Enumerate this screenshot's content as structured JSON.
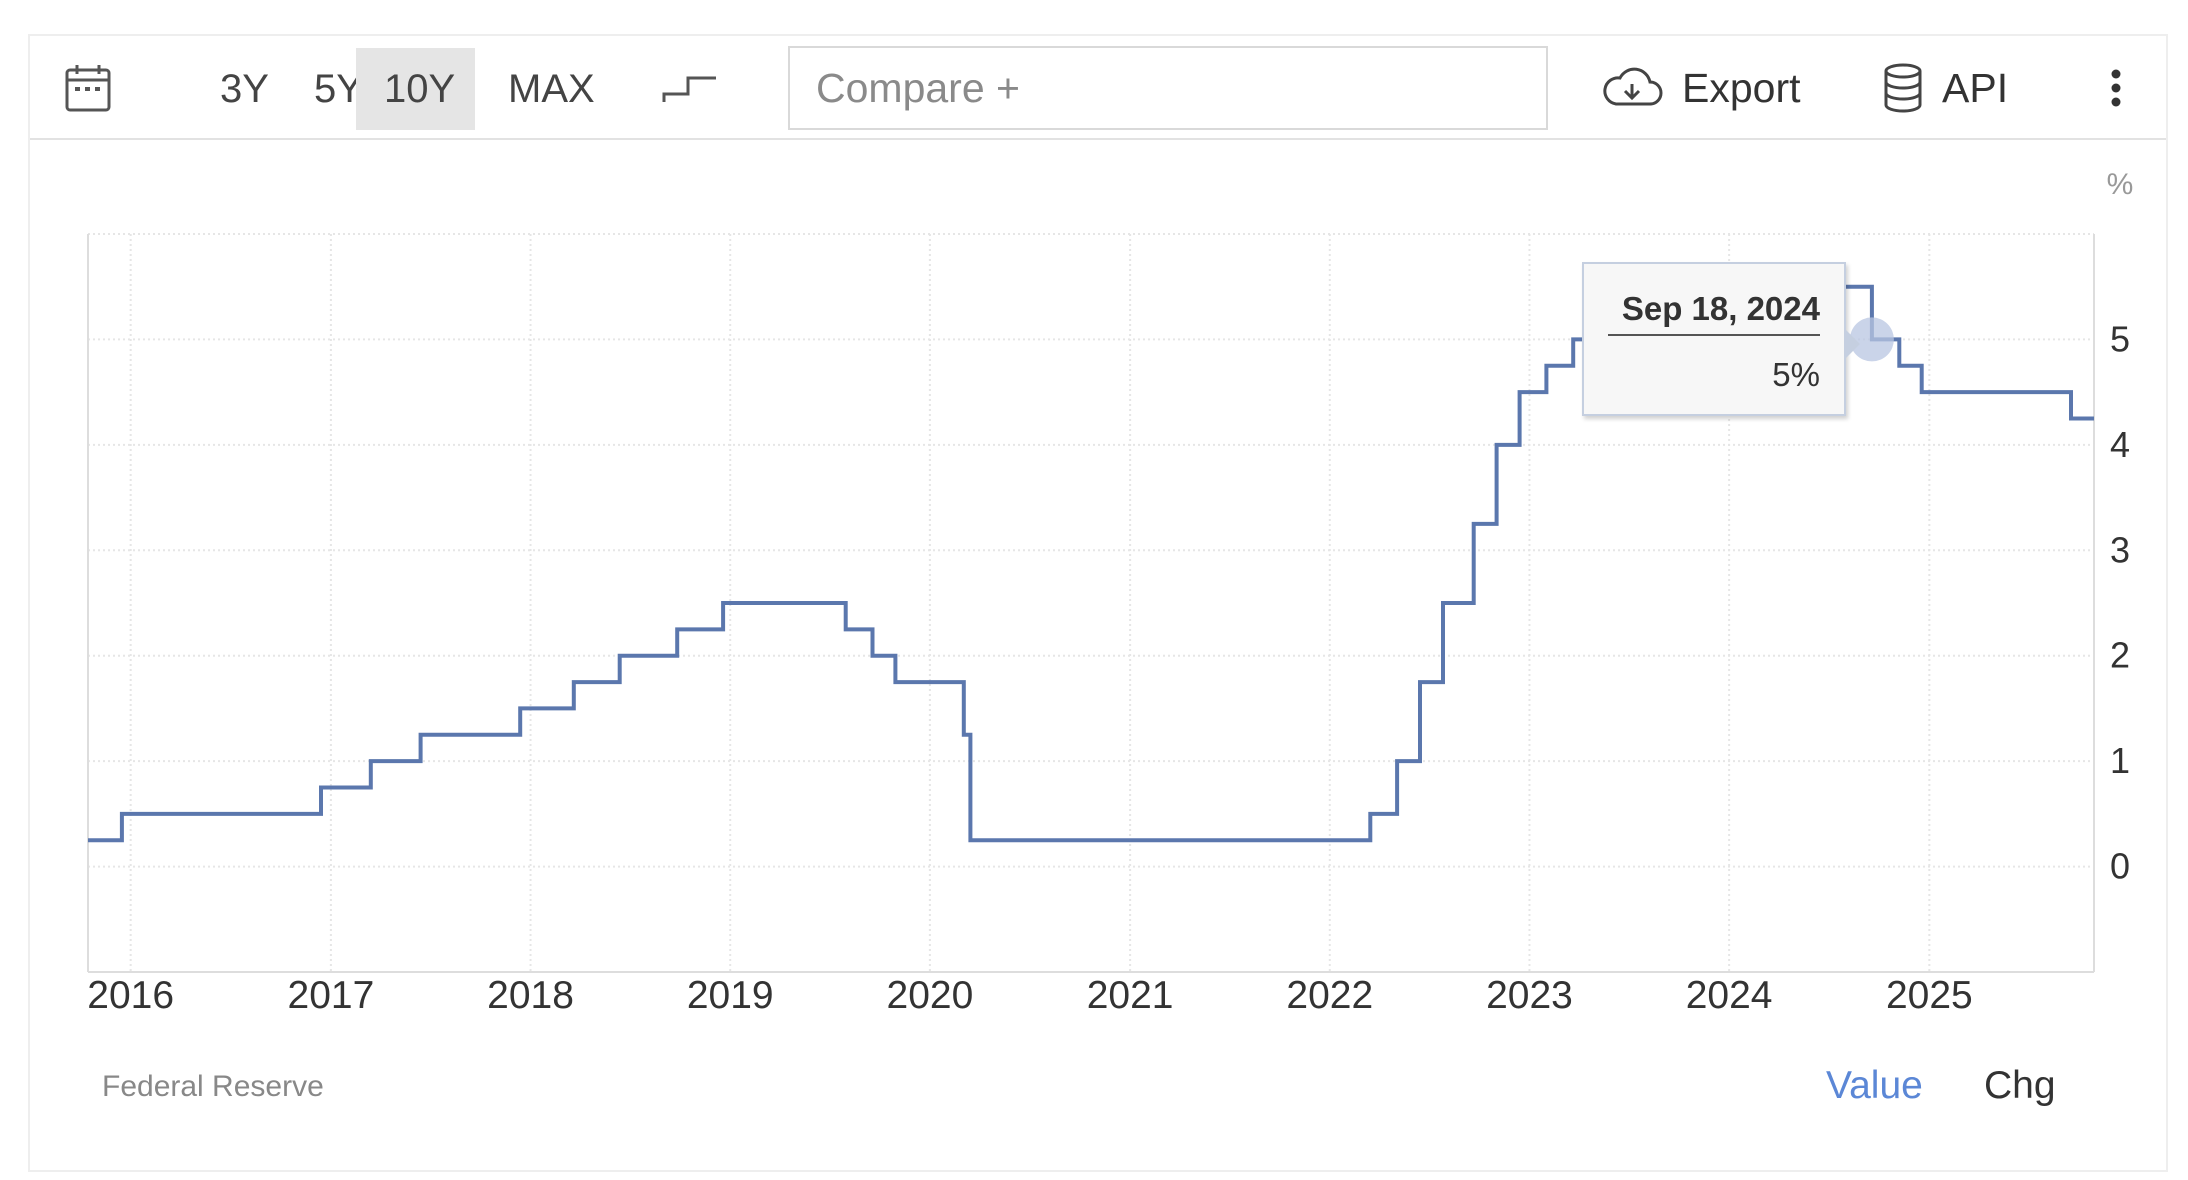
{
  "toolbar": {
    "ranges": [
      "3Y",
      "5Y",
      "10Y",
      "MAX"
    ],
    "active_range": "10Y",
    "compare_placeholder": "Compare +",
    "export_label": "Export",
    "api_label": "API",
    "icons": [
      "calendar-icon",
      "stepline-icon",
      "cloud-download-icon",
      "database-icon",
      "more-vertical-icon"
    ]
  },
  "tooltip": {
    "date": "Sep 18, 2024",
    "value": "5%"
  },
  "footer": {
    "source": "Federal Reserve",
    "value_label": "Value",
    "chg_label": "Chg"
  },
  "colors": {
    "line": "#5b77ad",
    "grid": "#e6e6e6",
    "accent_link": "#5b87d6",
    "tooltip_border": "#c5cfe0"
  },
  "chart_data": {
    "type": "line",
    "step": true,
    "unit_label": "%",
    "grid": true,
    "x_ticks": [
      "2016",
      "2017",
      "2018",
      "2019",
      "2020",
      "2021",
      "2022",
      "2023",
      "2024",
      "2025"
    ],
    "y_ticks": [
      "0",
      "1",
      "2",
      "3",
      "4",
      "5"
    ],
    "ylim": [
      -1,
      6
    ],
    "xlim": [
      "2015-10-15",
      "2025-10-29"
    ],
    "highlight": {
      "date": "2024-09-18",
      "value": 5
    },
    "series": [
      {
        "points": [
          [
            "2015-10-15",
            0.25
          ],
          [
            "2015-12-16",
            0.5
          ],
          [
            "2016-12-14",
            0.75
          ],
          [
            "2017-03-15",
            1.0
          ],
          [
            "2017-06-14",
            1.25
          ],
          [
            "2017-12-13",
            1.5
          ],
          [
            "2018-03-21",
            1.75
          ],
          [
            "2018-06-13",
            2.0
          ],
          [
            "2018-09-26",
            2.25
          ],
          [
            "2018-12-19",
            2.5
          ],
          [
            "2019-07-31",
            2.25
          ],
          [
            "2019-09-18",
            2.0
          ],
          [
            "2019-10-30",
            1.75
          ],
          [
            "2020-03-03",
            1.25
          ],
          [
            "2020-03-15",
            0.25
          ],
          [
            "2022-03-16",
            0.5
          ],
          [
            "2022-05-04",
            1.0
          ],
          [
            "2022-06-15",
            1.75
          ],
          [
            "2022-07-27",
            2.5
          ],
          [
            "2022-09-21",
            3.25
          ],
          [
            "2022-11-02",
            4.0
          ],
          [
            "2022-12-14",
            4.5
          ],
          [
            "2023-02-01",
            4.75
          ],
          [
            "2023-03-22",
            5.0
          ],
          [
            "2023-05-03",
            5.25
          ],
          [
            "2023-07-26",
            5.5
          ],
          [
            "2024-09-18",
            5.0
          ],
          [
            "2024-11-07",
            4.75
          ],
          [
            "2024-12-18",
            4.5
          ],
          [
            "2025-09-17",
            4.25
          ],
          [
            "2025-10-29",
            4.25
          ]
        ]
      }
    ]
  }
}
